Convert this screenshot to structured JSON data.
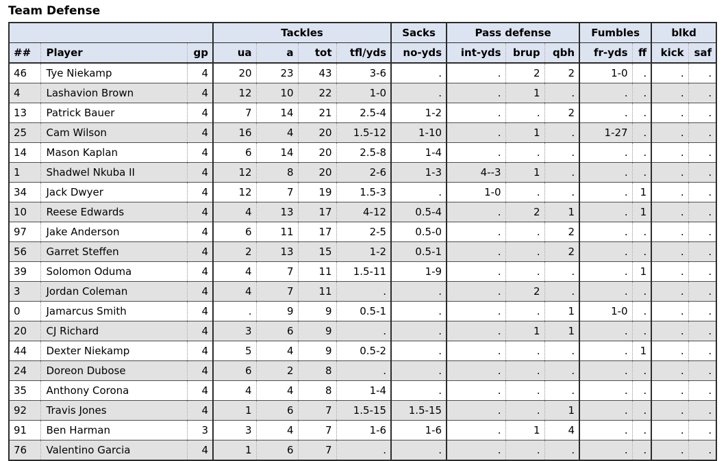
{
  "title": "Team Defense",
  "colors": {
    "header_bg": "#dde4f1",
    "alt_row_bg": "#e2e2e2",
    "border_dark": "#2b2b2b",
    "row_line": "#4d4d4d",
    "dotted_line": "#8f8f8f"
  },
  "table": {
    "groups": [
      {
        "label": "",
        "span": 3
      },
      {
        "label": "Tackles",
        "span": 4
      },
      {
        "label": "Sacks",
        "span": 1
      },
      {
        "label": "Pass defense",
        "span": 3
      },
      {
        "label": "Fumbles",
        "span": 2
      },
      {
        "label": "blkd",
        "span": 2
      }
    ],
    "columns": [
      {
        "key": "jersey",
        "label": "##"
      },
      {
        "key": "player",
        "label": "Player"
      },
      {
        "key": "gp",
        "label": "gp"
      },
      {
        "key": "ua",
        "label": "ua"
      },
      {
        "key": "a",
        "label": "a"
      },
      {
        "key": "tot",
        "label": "tot"
      },
      {
        "key": "tfl-yds",
        "label": "tfl/yds"
      },
      {
        "key": "no-yds",
        "label": "no-yds"
      },
      {
        "key": "int-yds",
        "label": "int-yds"
      },
      {
        "key": "brup",
        "label": "brup"
      },
      {
        "key": "qbh",
        "label": "qbh"
      },
      {
        "key": "fr-yds",
        "label": "fr-yds"
      },
      {
        "key": "ff",
        "label": "ff"
      },
      {
        "key": "kick",
        "label": "kick"
      },
      {
        "key": "saf",
        "label": "saf"
      }
    ],
    "rows": [
      [
        "46",
        "Tye Niekamp",
        "4",
        "20",
        "23",
        "43",
        "3-6",
        ".",
        ".",
        "2",
        "2",
        "1-0",
        ".",
        ".",
        "."
      ],
      [
        "4",
        "Lashavion Brown",
        "4",
        "12",
        "10",
        "22",
        "1-0",
        ".",
        ".",
        "1",
        ".",
        ".",
        ".",
        ".",
        "."
      ],
      [
        "13",
        "Patrick Bauer",
        "4",
        "7",
        "14",
        "21",
        "2.5-4",
        "1-2",
        ".",
        ".",
        "2",
        ".",
        ".",
        ".",
        "."
      ],
      [
        "25",
        "Cam Wilson",
        "4",
        "16",
        "4",
        "20",
        "1.5-12",
        "1-10",
        ".",
        "1",
        ".",
        "1-27",
        ".",
        ".",
        "."
      ],
      [
        "14",
        "Mason Kaplan",
        "4",
        "6",
        "14",
        "20",
        "2.5-8",
        "1-4",
        ".",
        ".",
        ".",
        ".",
        ".",
        ".",
        "."
      ],
      [
        "1",
        "Shadwel Nkuba II",
        "4",
        "12",
        "8",
        "20",
        "2-6",
        "1-3",
        "4--3",
        "1",
        ".",
        ".",
        ".",
        ".",
        "."
      ],
      [
        "34",
        "Jack Dwyer",
        "4",
        "12",
        "7",
        "19",
        "1.5-3",
        ".",
        "1-0",
        ".",
        ".",
        ".",
        "1",
        ".",
        "."
      ],
      [
        "10",
        "Reese Edwards",
        "4",
        "4",
        "13",
        "17",
        "4-12",
        "0.5-4",
        ".",
        "2",
        "1",
        ".",
        "1",
        ".",
        "."
      ],
      [
        "97",
        "Jake Anderson",
        "4",
        "6",
        "11",
        "17",
        "2-5",
        "0.5-0",
        ".",
        ".",
        "2",
        ".",
        ".",
        ".",
        "."
      ],
      [
        "56",
        "Garret Steffen",
        "4",
        "2",
        "13",
        "15",
        "1-2",
        "0.5-1",
        ".",
        ".",
        "2",
        ".",
        ".",
        ".",
        "."
      ],
      [
        "39",
        "Solomon Oduma",
        "4",
        "4",
        "7",
        "11",
        "1.5-11",
        "1-9",
        ".",
        ".",
        ".",
        ".",
        "1",
        ".",
        "."
      ],
      [
        "3",
        "Jordan Coleman",
        "4",
        "4",
        "7",
        "11",
        ".",
        ".",
        ".",
        "2",
        ".",
        ".",
        ".",
        ".",
        "."
      ],
      [
        "0",
        "Jamarcus Smith",
        "4",
        ".",
        "9",
        "9",
        "0.5-1",
        ".",
        ".",
        ".",
        "1",
        "1-0",
        ".",
        ".",
        "."
      ],
      [
        "20",
        "CJ Richard",
        "4",
        "3",
        "6",
        "9",
        ".",
        ".",
        ".",
        "1",
        "1",
        ".",
        ".",
        ".",
        "."
      ],
      [
        "44",
        "Dexter Niekamp",
        "4",
        "5",
        "4",
        "9",
        "0.5-2",
        ".",
        ".",
        ".",
        ".",
        ".",
        "1",
        ".",
        "."
      ],
      [
        "24",
        "Doreon Dubose",
        "4",
        "6",
        "2",
        "8",
        ".",
        ".",
        ".",
        ".",
        ".",
        ".",
        ".",
        ".",
        "."
      ],
      [
        "35",
        "Anthony Corona",
        "4",
        "4",
        "4",
        "8",
        "1-4",
        ".",
        ".",
        ".",
        ".",
        ".",
        ".",
        ".",
        "."
      ],
      [
        "92",
        "Travis Jones",
        "4",
        "1",
        "6",
        "7",
        "1.5-15",
        "1.5-15",
        ".",
        ".",
        "1",
        ".",
        ".",
        ".",
        "."
      ],
      [
        "91",
        "Ben Harman",
        "3",
        "3",
        "4",
        "7",
        "1-6",
        "1-6",
        ".",
        "1",
        "4",
        ".",
        ".",
        ".",
        "."
      ],
      [
        "76",
        "Valentino Garcia",
        "4",
        "1",
        "6",
        "7",
        ".",
        ".",
        ".",
        ".",
        ".",
        ".",
        ".",
        ".",
        "."
      ]
    ]
  }
}
